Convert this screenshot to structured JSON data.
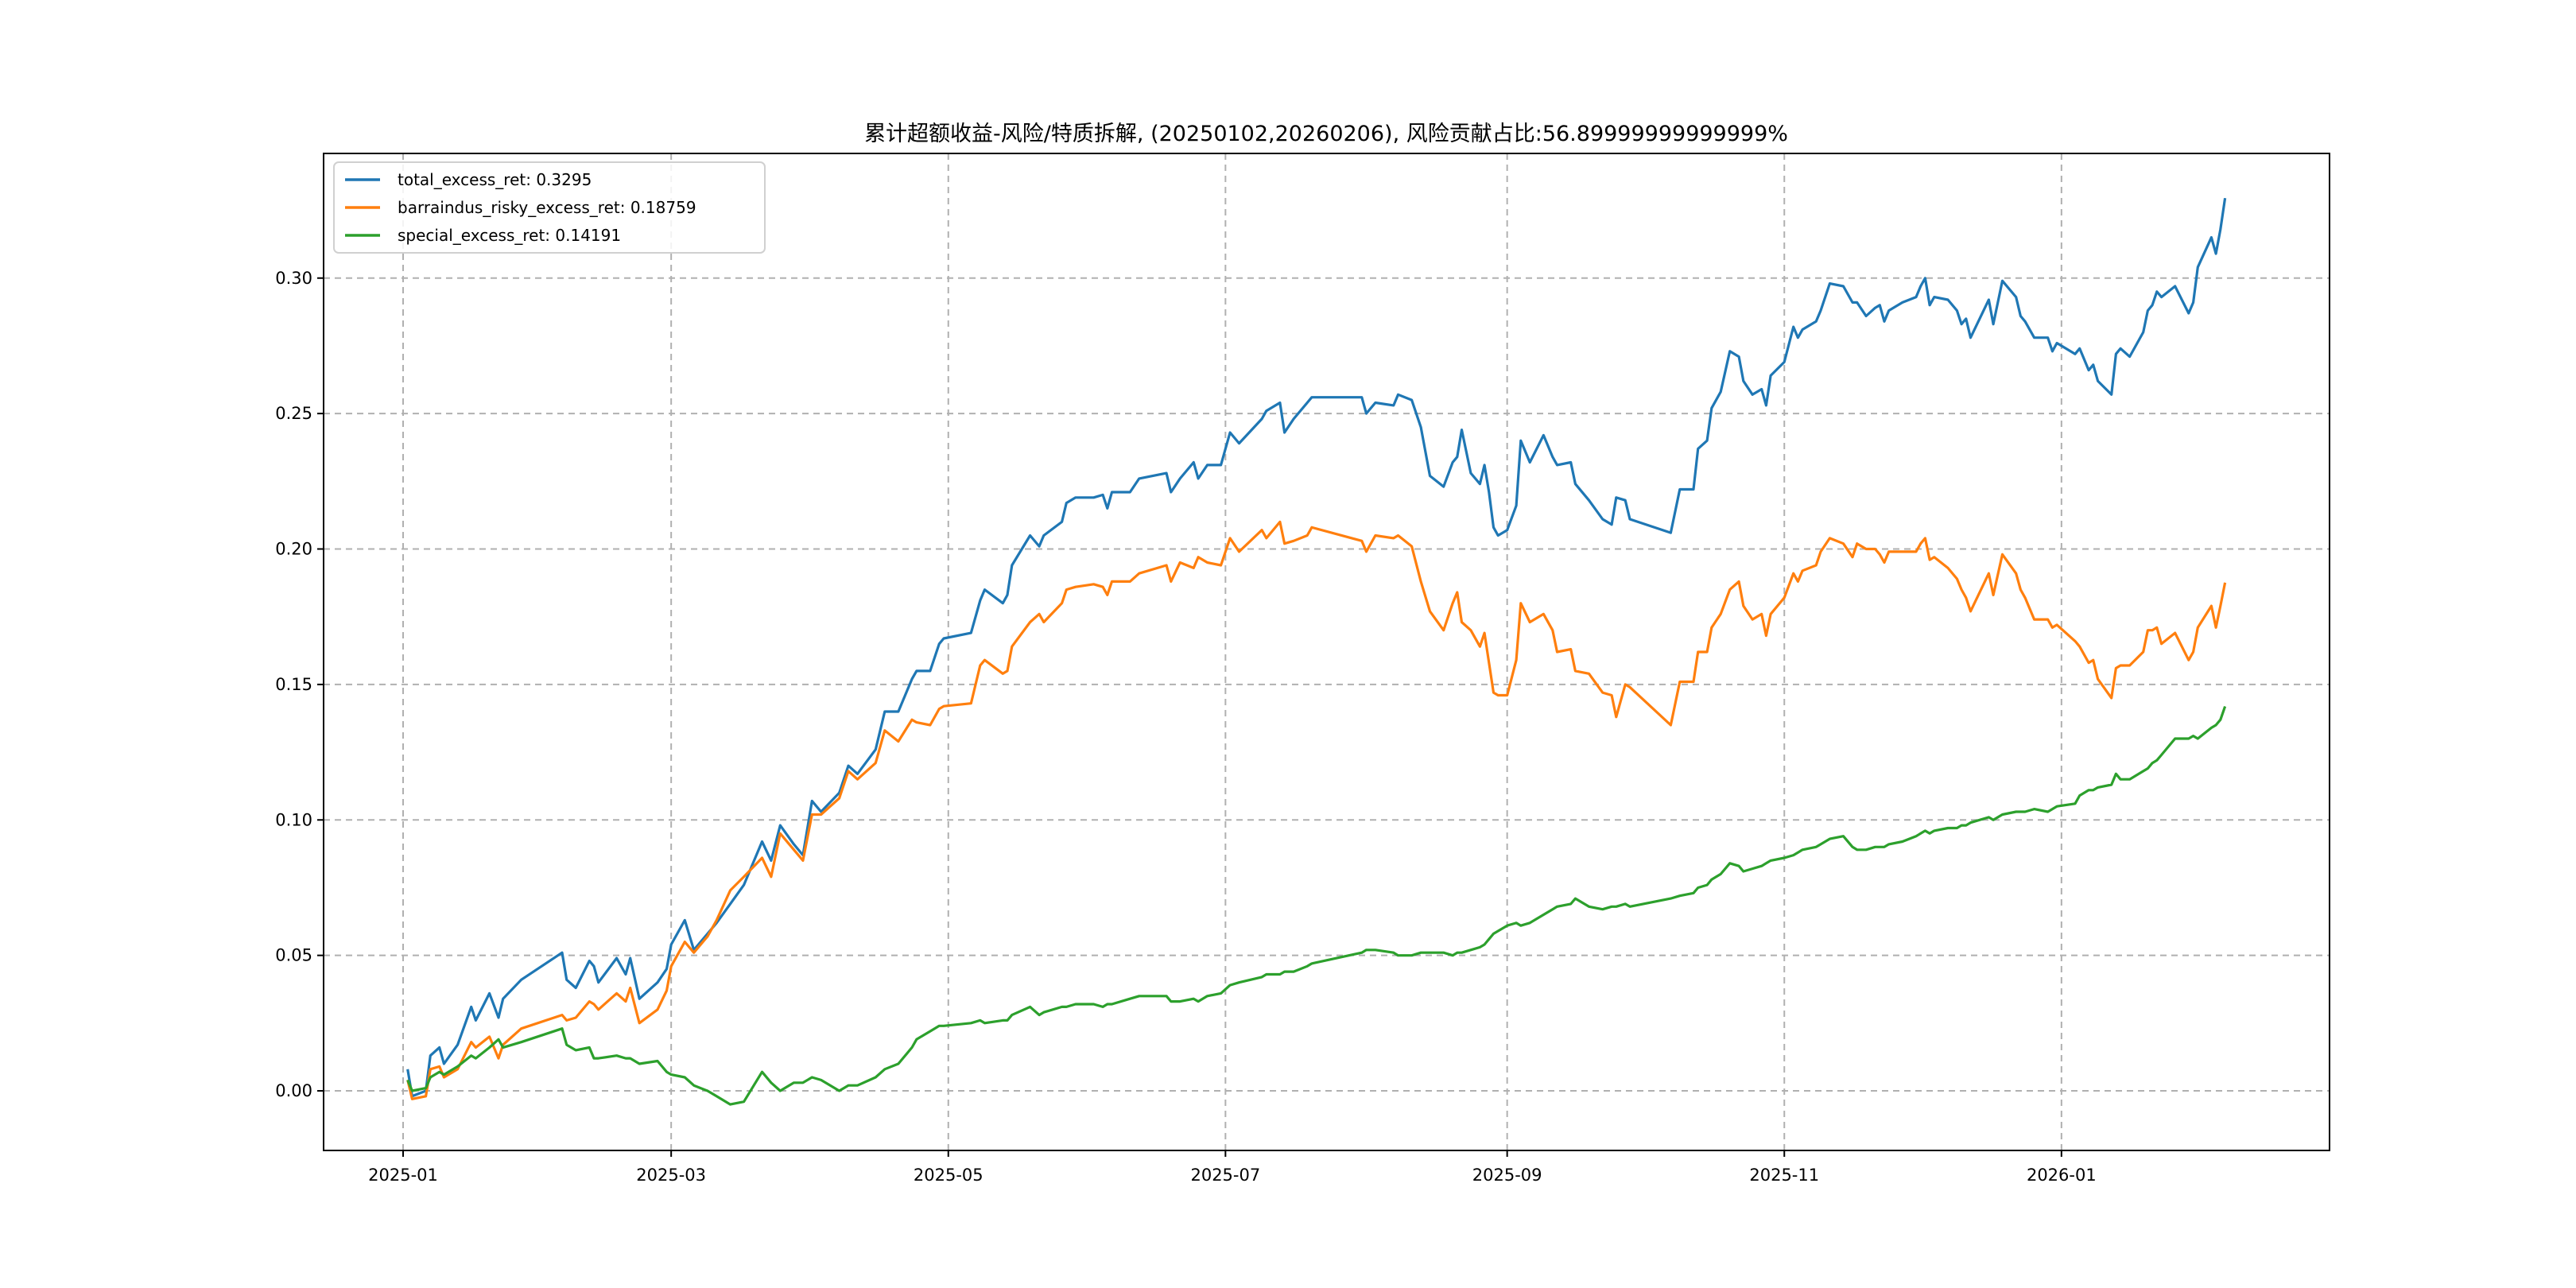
{
  "chart_data": {
    "type": "line",
    "title": "累计超额收益-风险/特质拆解, (20250102,20260206), 风险贡献占比:56.89999999999999%",
    "xlabel": "",
    "ylabel": "",
    "x_unit": "days since 2025-01-01",
    "xlim": [
      -17.5,
      424
    ],
    "ylim": [
      -0.022,
      0.346
    ],
    "grid": true,
    "legend_position": "upper-left",
    "x_ticks": [
      {
        "value": 0,
        "label": "2025-01"
      },
      {
        "value": 59,
        "label": "2025-03"
      },
      {
        "value": 120,
        "label": "2025-05"
      },
      {
        "value": 181,
        "label": "2025-07"
      },
      {
        "value": 243,
        "label": "2025-09"
      },
      {
        "value": 304,
        "label": "2025-11"
      },
      {
        "value": 365,
        "label": "2026-01"
      }
    ],
    "y_ticks": [
      {
        "value": 0.0,
        "label": "0.00"
      },
      {
        "value": 0.05,
        "label": "0.05"
      },
      {
        "value": 0.1,
        "label": "0.10"
      },
      {
        "value": 0.15,
        "label": "0.15"
      },
      {
        "value": 0.2,
        "label": "0.20"
      },
      {
        "value": 0.25,
        "label": "0.25"
      },
      {
        "value": 0.3,
        "label": "0.30"
      }
    ],
    "x": [
      1,
      2,
      5,
      6,
      8,
      9,
      12,
      15,
      16,
      19,
      21,
      22,
      26,
      35,
      36,
      38,
      41,
      42,
      43,
      47,
      49,
      50,
      52,
      56,
      58,
      59,
      62,
      64,
      67,
      69,
      72,
      75,
      79,
      81,
      83,
      86,
      88,
      90,
      92,
      96,
      98,
      100,
      104,
      106,
      109,
      112,
      113,
      116,
      118,
      119,
      125,
      127,
      128,
      132,
      133,
      134,
      138,
      140,
      141,
      145,
      146,
      148,
      152,
      154,
      155,
      156,
      160,
      162,
      168,
      169,
      171,
      174,
      175,
      177,
      180,
      182,
      184,
      189,
      190,
      193,
      194,
      196,
      199,
      200,
      211,
      212,
      214,
      218,
      219,
      222,
      224,
      226,
      229,
      231,
      232,
      233,
      235,
      237,
      238,
      239,
      240,
      241,
      243,
      245,
      246,
      248,
      251,
      253,
      254,
      257,
      258,
      261,
      264,
      266,
      267,
      269,
      270,
      279,
      281,
      284,
      285,
      287,
      288,
      290,
      292,
      294,
      295,
      297,
      299,
      300,
      301,
      304,
      306,
      307,
      308,
      311,
      312,
      314,
      317,
      319,
      320,
      322,
      324,
      325,
      326,
      327,
      330,
      333,
      334,
      335,
      336,
      337,
      340,
      342,
      343,
      344,
      345,
      349,
      350,
      352,
      355,
      356,
      357,
      359,
      362,
      363,
      364,
      368,
      369,
      371,
      372,
      373,
      376,
      377,
      378,
      380,
      383,
      384,
      385,
      386,
      387,
      390,
      393,
      394,
      395,
      398,
      399,
      400,
      401
    ],
    "series": [
      {
        "name": "total_excess_ret",
        "legend_label": "total_excess_ret: 0.3295",
        "color": "#1f77b4",
        "values": [
          0.008,
          -0.002,
          0.0,
          0.013,
          0.016,
          0.01,
          0.017,
          0.031,
          0.026,
          0.036,
          0.027,
          0.034,
          0.041,
          0.051,
          0.041,
          0.038,
          0.048,
          0.046,
          0.04,
          0.049,
          0.043,
          0.049,
          0.034,
          0.04,
          0.045,
          0.054,
          0.063,
          0.052,
          0.058,
          0.062,
          0.069,
          0.076,
          0.092,
          0.085,
          0.098,
          0.091,
          0.087,
          0.107,
          0.103,
          0.11,
          0.12,
          0.117,
          0.126,
          0.14,
          0.14,
          0.152,
          0.155,
          0.155,
          0.165,
          0.167,
          0.169,
          0.181,
          0.185,
          0.18,
          0.183,
          0.194,
          0.205,
          0.201,
          0.205,
          0.21,
          0.217,
          0.219,
          0.219,
          0.22,
          0.215,
          0.221,
          0.221,
          0.226,
          0.228,
          0.221,
          0.226,
          0.232,
          0.226,
          0.231,
          0.231,
          0.243,
          0.239,
          0.248,
          0.251,
          0.254,
          0.243,
          0.248,
          0.254,
          0.256,
          0.256,
          0.25,
          0.254,
          0.253,
          0.257,
          0.255,
          0.245,
          0.227,
          0.223,
          0.232,
          0.234,
          0.244,
          0.228,
          0.224,
          0.231,
          0.221,
          0.208,
          0.205,
          0.207,
          0.216,
          0.24,
          0.232,
          0.242,
          0.234,
          0.231,
          0.232,
          0.224,
          0.218,
          0.211,
          0.209,
          0.219,
          0.218,
          0.211,
          0.206,
          0.222,
          0.222,
          0.237,
          0.24,
          0.252,
          0.258,
          0.273,
          0.271,
          0.262,
          0.257,
          0.259,
          0.253,
          0.264,
          0.269,
          0.282,
          0.278,
          0.281,
          0.284,
          0.288,
          0.298,
          0.297,
          0.291,
          0.291,
          0.286,
          0.289,
          0.29,
          0.284,
          0.288,
          0.291,
          0.293,
          0.297,
          0.3,
          0.29,
          0.293,
          0.292,
          0.288,
          0.283,
          0.285,
          0.278,
          0.292,
          0.283,
          0.299,
          0.293,
          0.286,
          0.284,
          0.278,
          0.278,
          0.273,
          0.276,
          0.272,
          0.274,
          0.266,
          0.268,
          0.262,
          0.257,
          0.272,
          0.274,
          0.271,
          0.28,
          0.288,
          0.29,
          0.295,
          0.293,
          0.297,
          0.287,
          0.291,
          0.304,
          0.315,
          0.309,
          0.318,
          0.3295
        ]
      },
      {
        "name": "barraindus_risky_excess_ret",
        "legend_label": "barraindus_risky_excess_ret: 0.18759",
        "color": "#ff7f0e",
        "values": [
          0.004,
          -0.003,
          -0.002,
          0.008,
          0.009,
          0.005,
          0.008,
          0.018,
          0.016,
          0.02,
          0.012,
          0.017,
          0.023,
          0.028,
          0.026,
          0.027,
          0.033,
          0.032,
          0.03,
          0.036,
          0.033,
          0.038,
          0.025,
          0.03,
          0.037,
          0.046,
          0.055,
          0.051,
          0.057,
          0.063,
          0.074,
          0.079,
          0.086,
          0.079,
          0.095,
          0.089,
          0.085,
          0.102,
          0.102,
          0.108,
          0.118,
          0.115,
          0.121,
          0.133,
          0.129,
          0.137,
          0.136,
          0.135,
          0.141,
          0.142,
          0.143,
          0.157,
          0.159,
          0.154,
          0.155,
          0.164,
          0.173,
          0.176,
          0.173,
          0.18,
          0.185,
          0.186,
          0.187,
          0.186,
          0.183,
          0.188,
          0.188,
          0.191,
          0.194,
          0.188,
          0.195,
          0.193,
          0.197,
          0.195,
          0.194,
          0.204,
          0.199,
          0.207,
          0.204,
          0.21,
          0.202,
          0.203,
          0.205,
          0.208,
          0.203,
          0.199,
          0.205,
          0.204,
          0.205,
          0.201,
          0.188,
          0.177,
          0.17,
          0.18,
          0.184,
          0.173,
          0.17,
          0.164,
          0.169,
          0.158,
          0.147,
          0.146,
          0.146,
          0.159,
          0.18,
          0.173,
          0.176,
          0.17,
          0.162,
          0.163,
          0.155,
          0.154,
          0.147,
          0.146,
          0.138,
          0.15,
          0.149,
          0.135,
          0.151,
          0.151,
          0.162,
          0.162,
          0.171,
          0.176,
          0.185,
          0.188,
          0.179,
          0.174,
          0.176,
          0.168,
          0.176,
          0.182,
          0.191,
          0.188,
          0.192,
          0.194,
          0.199,
          0.204,
          0.202,
          0.197,
          0.202,
          0.2,
          0.2,
          0.198,
          0.195,
          0.199,
          0.199,
          0.199,
          0.202,
          0.204,
          0.196,
          0.197,
          0.193,
          0.189,
          0.185,
          0.182,
          0.177,
          0.191,
          0.183,
          0.198,
          0.191,
          0.185,
          0.182,
          0.174,
          0.174,
          0.171,
          0.172,
          0.166,
          0.164,
          0.158,
          0.159,
          0.152,
          0.145,
          0.156,
          0.157,
          0.157,
          0.162,
          0.17,
          0.17,
          0.171,
          0.165,
          0.169,
          0.159,
          0.162,
          0.171,
          0.179,
          0.171,
          0.179,
          0.18759
        ]
      },
      {
        "name": "special_excess_ret",
        "legend_label": "special_excess_ret: 0.14191",
        "color": "#2ca02c",
        "values": [
          0.004,
          0.0,
          0.001,
          0.005,
          0.007,
          0.006,
          0.009,
          0.013,
          0.012,
          0.016,
          0.019,
          0.016,
          0.018,
          0.023,
          0.017,
          0.015,
          0.016,
          0.012,
          0.012,
          0.013,
          0.012,
          0.012,
          0.01,
          0.011,
          0.007,
          0.006,
          0.005,
          0.002,
          0.0,
          -0.002,
          -0.005,
          -0.004,
          0.007,
          0.003,
          0.0,
          0.003,
          0.003,
          0.005,
          0.004,
          0.0,
          0.002,
          0.002,
          0.005,
          0.008,
          0.01,
          0.016,
          0.019,
          0.022,
          0.024,
          0.024,
          0.025,
          0.026,
          0.025,
          0.026,
          0.026,
          0.028,
          0.031,
          0.028,
          0.029,
          0.031,
          0.031,
          0.032,
          0.032,
          0.031,
          0.032,
          0.032,
          0.034,
          0.035,
          0.035,
          0.033,
          0.033,
          0.034,
          0.033,
          0.035,
          0.036,
          0.039,
          0.04,
          0.042,
          0.043,
          0.043,
          0.044,
          0.044,
          0.046,
          0.047,
          0.051,
          0.052,
          0.052,
          0.051,
          0.05,
          0.05,
          0.051,
          0.051,
          0.051,
          0.05,
          0.051,
          0.051,
          0.052,
          0.053,
          0.054,
          0.056,
          0.058,
          0.059,
          0.061,
          0.062,
          0.061,
          0.062,
          0.065,
          0.067,
          0.068,
          0.069,
          0.071,
          0.068,
          0.067,
          0.068,
          0.068,
          0.069,
          0.068,
          0.071,
          0.072,
          0.073,
          0.075,
          0.076,
          0.078,
          0.08,
          0.084,
          0.083,
          0.081,
          0.082,
          0.083,
          0.084,
          0.085,
          0.086,
          0.087,
          0.088,
          0.089,
          0.09,
          0.091,
          0.093,
          0.094,
          0.09,
          0.089,
          0.089,
          0.09,
          0.09,
          0.09,
          0.091,
          0.092,
          0.094,
          0.095,
          0.096,
          0.095,
          0.096,
          0.097,
          0.097,
          0.098,
          0.098,
          0.099,
          0.101,
          0.1,
          0.102,
          0.103,
          0.103,
          0.103,
          0.104,
          0.103,
          0.104,
          0.105,
          0.106,
          0.109,
          0.111,
          0.111,
          0.112,
          0.113,
          0.117,
          0.115,
          0.115,
          0.118,
          0.119,
          0.121,
          0.122,
          0.124,
          0.13,
          0.13,
          0.131,
          0.13,
          0.134,
          0.135,
          0.137,
          0.1419
        ]
      }
    ]
  }
}
